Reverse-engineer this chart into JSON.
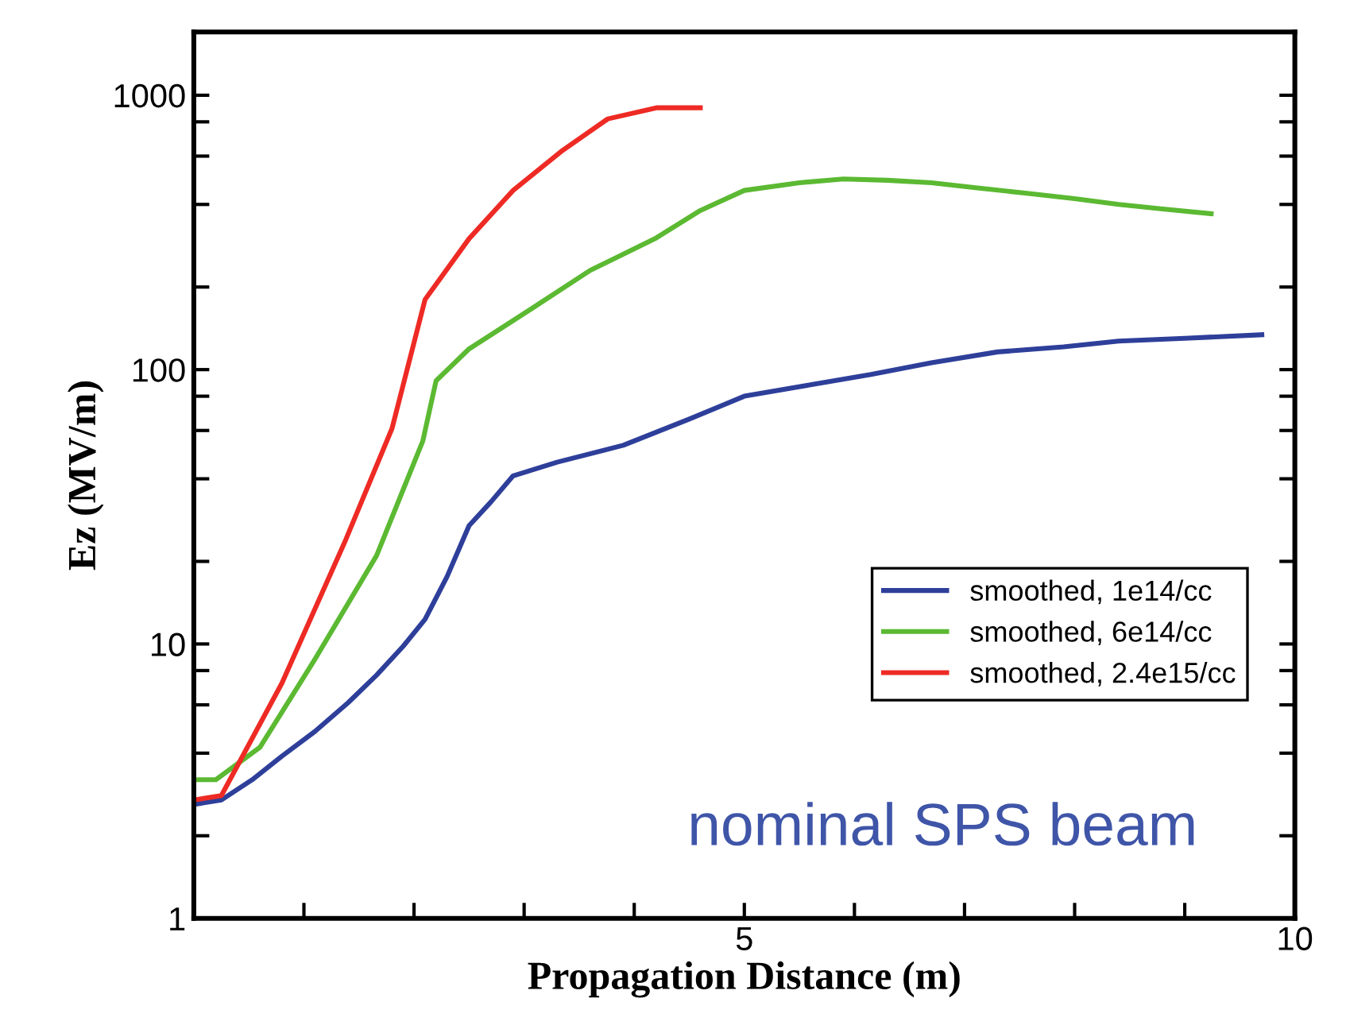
{
  "chart_data": {
    "type": "line",
    "xlabel": "Propagation Distance (m)",
    "ylabel": "Ez (MV/m)",
    "xlim": [
      0,
      10
    ],
    "xticks": [
      {
        "value": 1,
        "label": null
      },
      {
        "value": 2,
        "label": null
      },
      {
        "value": 3,
        "label": null
      },
      {
        "value": 4,
        "label": null
      },
      5,
      {
        "value": 6,
        "label": null
      },
      {
        "value": 7,
        "label": null
      },
      {
        "value": 8,
        "label": null
      },
      {
        "value": 9,
        "label": null
      },
      10
    ],
    "ylim": [
      1,
      1700
    ],
    "log": "y",
    "yticks": [
      1,
      {
        "value": 2,
        "label": null
      },
      {
        "value": 4,
        "label": null
      },
      {
        "value": 6,
        "label": null
      },
      {
        "value": 8,
        "label": null
      },
      10,
      {
        "value": 20,
        "label": null
      },
      {
        "value": 40,
        "label": null
      },
      {
        "value": 60,
        "label": null
      },
      {
        "value": 80,
        "label": null
      },
      100,
      {
        "value": 200,
        "label": null
      },
      {
        "value": 400,
        "label": null
      },
      {
        "value": 600,
        "label": null
      },
      {
        "value": 800,
        "label": null
      },
      1000
    ],
    "grid": false,
    "legend": "lower right",
    "marker": "none",
    "line_style": "solid",
    "annotations": [
      "nominal SPS beam"
    ],
    "series": [
      {
        "name": "smoothed, 1e14/cc",
        "color": "#2e3f9a",
        "x": [
          0,
          0.25,
          0.53,
          0.8,
          1.1,
          1.4,
          1.66,
          1.9,
          2.1,
          2.3,
          2.5,
          2.7,
          2.9,
          3.3,
          3.9,
          4.5,
          5.0,
          5.6,
          6.15,
          6.7,
          7.3,
          7.9,
          8.4,
          9.0,
          9.7
        ],
        "values": [
          2.6,
          2.7,
          3.2,
          3.9,
          4.8,
          6.1,
          7.7,
          9.8,
          12.3,
          17.6,
          27,
          33,
          41,
          46,
          53,
          66,
          80,
          88,
          96,
          106,
          116,
          121,
          127,
          130,
          134
        ]
      },
      {
        "name": "smoothed, 6e14/cc",
        "color": "#5bb932",
        "x": [
          0,
          0.2,
          0.6,
          1.1,
          1.66,
          2.08,
          2.2,
          2.5,
          3.06,
          3.6,
          4.2,
          4.6,
          5.0,
          5.5,
          5.9,
          6.3,
          6.7,
          7.1,
          7.55,
          8.0,
          8.4,
          8.8,
          9.24
        ],
        "values": [
          3.2,
          3.2,
          4.2,
          8.8,
          21,
          55,
          91,
          119,
          166,
          230,
          302,
          380,
          450,
          480,
          495,
          490,
          480,
          460,
          440,
          420,
          400,
          385,
          370
        ]
      },
      {
        "name": "smoothed, 2.4e15/cc",
        "color": "#ee2a24",
        "x": [
          0,
          0.25,
          0.8,
          1.38,
          1.8,
          2.1,
          2.5,
          2.9,
          3.35,
          3.76,
          4.2,
          4.6
        ],
        "values": [
          2.7,
          2.8,
          7.2,
          24,
          61,
          180,
          300,
          450,
          630,
          820,
          900,
          900
        ]
      }
    ]
  }
}
